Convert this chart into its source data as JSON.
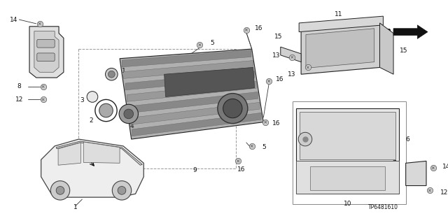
{
  "background_color": "#ffffff",
  "part_number": "TP6481610",
  "fig_width": 6.4,
  "fig_height": 3.19,
  "dpi": 100,
  "label_fontsize": 6.5,
  "label_color": "#111111",
  "line_color": "#333333",
  "line_lw": 0.6,
  "component_lw": 0.8,
  "component_edge": "#222222",
  "screw_color": "#555555",
  "screw_face": "#888888",
  "screw_ms": 3.0
}
